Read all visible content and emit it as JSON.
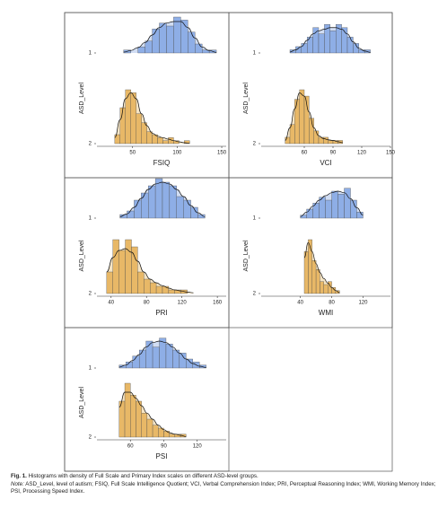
{
  "chart_data": [
    {
      "type": "ridgeline",
      "x_label": "FSIQ",
      "y_label": "ASD_Level",
      "xlim": [
        10,
        155
      ],
      "xticks": [
        50,
        100,
        150
      ],
      "groups": [
        {
          "label": "1",
          "color": "#8eaee6",
          "density_color": "#c9d7f1",
          "bins": [
            40,
            48,
            56,
            64,
            72,
            80,
            88,
            96,
            104,
            112,
            120,
            128,
            136,
            144
          ],
          "counts": [
            1,
            0,
            2,
            4,
            8,
            10,
            9,
            12,
            11,
            7,
            3,
            1,
            1
          ],
          "density": [
            0.3,
            0.8,
            1.8,
            3.5,
            6,
            8.5,
            10,
            10.5,
            10.5,
            8.5,
            5,
            2,
            0.8,
            0.2
          ]
        },
        {
          "label": "2",
          "color": "#e8b867",
          "density_color": "#f4e0bb",
          "bins": [
            30,
            36,
            42,
            48,
            54,
            60,
            66,
            72,
            78,
            84,
            90,
            96,
            102,
            108,
            114
          ],
          "counts": [
            3,
            12,
            18,
            17,
            10,
            7,
            4,
            3,
            2,
            1,
            2,
            1,
            0,
            1
          ],
          "density": [
            2,
            8,
            15,
            17,
            15,
            10,
            6,
            3.5,
            2.5,
            2,
            1.5,
            1,
            0.6,
            0.3,
            0.1
          ]
        }
      ]
    },
    {
      "type": "ridgeline",
      "x_label": "VCI",
      "y_label": "ASD_Level",
      "xlim": [
        15,
        150
      ],
      "xticks": [
        60,
        90,
        120,
        150
      ],
      "groups": [
        {
          "label": "1",
          "color": "#8eaee6",
          "density_color": "#c9d7f1",
          "bins": [
            45,
            51,
            57,
            63,
            69,
            75,
            81,
            87,
            93,
            99,
            105,
            111,
            117,
            123,
            129
          ],
          "counts": [
            1,
            2,
            3,
            5,
            8,
            6,
            9,
            7,
            9,
            8,
            5,
            3,
            1,
            1
          ],
          "density": [
            0.3,
            1,
            2,
            4,
            6,
            7,
            7.5,
            8,
            8,
            7.5,
            6,
            3.5,
            1.5,
            0.6,
            0.2
          ]
        },
        {
          "label": "2",
          "color": "#e8b867",
          "density_color": "#f4e0bb",
          "bins": [
            40,
            45,
            50,
            55,
            60,
            65,
            70,
            75,
            80,
            85,
            90,
            95,
            100
          ],
          "counts": [
            2,
            6,
            14,
            17,
            15,
            8,
            4,
            2,
            2,
            1,
            1,
            1
          ],
          "density": [
            1,
            5,
            11,
            16,
            15,
            10,
            5,
            2.5,
            1.6,
            1.2,
            1,
            0.6,
            0.3
          ]
        }
      ]
    },
    {
      "type": "ridgeline",
      "x_label": "PRI",
      "y_label": "ASD_Level",
      "xlim": [
        24,
        170
      ],
      "xticks": [
        40,
        80,
        120,
        160
      ],
      "groups": [
        {
          "label": "1",
          "color": "#8eaee6",
          "density_color": "#c9d7f1",
          "bins": [
            50,
            58,
            66,
            74,
            82,
            90,
            98,
            106,
            114,
            122,
            130,
            138,
            146
          ],
          "counts": [
            1,
            2,
            5,
            7,
            9,
            11,
            10,
            9,
            6,
            5,
            3,
            1
          ],
          "density": [
            0.4,
            1.2,
            3,
            5.5,
            8,
            9.5,
            10,
            9.5,
            8,
            6,
            3.5,
            1.5,
            0.4
          ]
        },
        {
          "label": "2",
          "color": "#e8b867",
          "density_color": "#f4e0bb",
          "bins": [
            35,
            42,
            49,
            56,
            63,
            70,
            77,
            84,
            91,
            98,
            105,
            112,
            119,
            126,
            133
          ],
          "counts": [
            6,
            15,
            12,
            15,
            13,
            6,
            4,
            3,
            2,
            2,
            1,
            1,
            1,
            0
          ],
          "density": [
            6,
            10,
            12,
            12.5,
            11.5,
            9,
            6,
            4,
            3,
            2.2,
            1.5,
            1,
            0.7,
            0.4,
            0.2
          ]
        }
      ]
    },
    {
      "type": "ridgeline",
      "x_label": "WMI",
      "y_label": "ASD_Level",
      "xlim": [
        -10,
        155
      ],
      "xticks": [
        40,
        80,
        120
      ],
      "groups": [
        {
          "label": "1",
          "color": "#8eaee6",
          "density_color": "#c9d7f1",
          "bins": [
            40,
            48,
            56,
            64,
            72,
            80,
            88,
            96,
            104,
            112,
            120
          ],
          "counts": [
            1,
            3,
            5,
            7,
            6,
            9,
            8,
            10,
            6,
            2
          ],
          "density": [
            0.5,
            2,
            4,
            6,
            7.5,
            8.5,
            9,
            8.5,
            6.5,
            3.5,
            1
          ]
        },
        {
          "label": "2",
          "color": "#e8b867",
          "density_color": "#f4e0bb",
          "bins": [
            45,
            50,
            55,
            60,
            65,
            70,
            75,
            80,
            85,
            90
          ],
          "counts": [
            14,
            18,
            11,
            8,
            4,
            3,
            4,
            2,
            1
          ],
          "density": [
            12,
            17,
            14,
            10,
            7,
            5,
            3.5,
            2,
            1,
            0.3
          ]
        }
      ]
    },
    {
      "type": "ridgeline",
      "x_label": "PSI",
      "y_label": "ASD_Level",
      "xlim": [
        30,
        146
      ],
      "xticks": [
        60,
        90,
        120
      ],
      "groups": [
        {
          "label": "1",
          "color": "#8eaee6",
          "density_color": "#c9d7f1",
          "bins": [
            50,
            56,
            62,
            68,
            74,
            80,
            86,
            92,
            98,
            104,
            110,
            116,
            122,
            128
          ],
          "counts": [
            1,
            2,
            4,
            6,
            9,
            7,
            10,
            8,
            6,
            5,
            3,
            2,
            1
          ],
          "density": [
            0.3,
            1,
            2.5,
            4.5,
            7,
            8.5,
            9,
            8.5,
            7,
            5,
            3,
            1.5,
            0.6,
            0.2
          ]
        },
        {
          "label": "2",
          "color": "#e8b867",
          "density_color": "#f4e0bb",
          "bins": [
            50,
            55,
            60,
            65,
            70,
            75,
            80,
            85,
            90,
            95,
            100,
            105,
            110
          ],
          "counts": [
            12,
            18,
            14,
            12,
            8,
            6,
            4,
            3,
            2,
            1,
            1,
            1
          ],
          "density": [
            10,
            15,
            15,
            13,
            10.5,
            8,
            6,
            4,
            2.5,
            1.5,
            1,
            0.6,
            0.2
          ]
        }
      ]
    }
  ],
  "caption": {
    "label": "Fig. 1.",
    "text": "Histograms with density of Full Scale and Primary Index scales on different ASD-level groups."
  },
  "note": {
    "label": "Note:",
    "text": "ASD_Level, level of autism; FSIQ, Full Scale Intelligence Quotient; VCI, Verbal Comprehension Index; PRI, Perceptual Reasoning Index; WMI, Working Memory Index; PSI, Processing Speed Index."
  }
}
